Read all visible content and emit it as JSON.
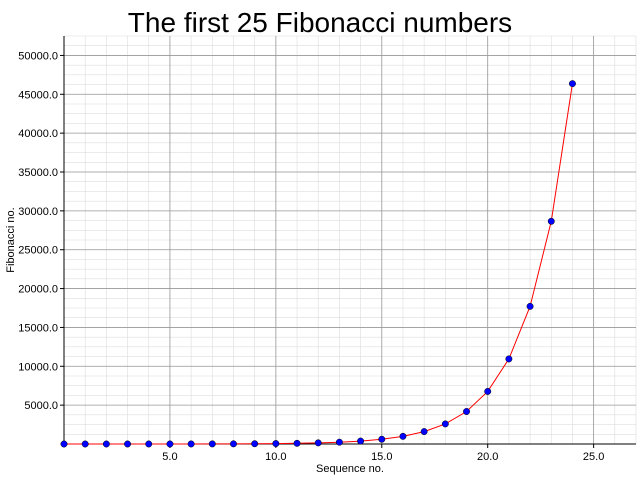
{
  "chart_data": {
    "type": "line",
    "title": "The first 25 Fibonacci numbers",
    "xlabel": "Sequence no.",
    "ylabel": "Fibonacci no.",
    "xlim": [
      0,
      27
    ],
    "ylim": [
      0,
      52500
    ],
    "x_ticks": [
      5,
      10,
      15,
      20,
      25
    ],
    "x_tick_labels": [
      "5.0",
      "10.0",
      "15.0",
      "20.0",
      "25.0"
    ],
    "y_ticks": [
      5000,
      10000,
      15000,
      20000,
      25000,
      30000,
      35000,
      40000,
      45000,
      50000
    ],
    "y_tick_labels": [
      "5000.0",
      "10000.0",
      "15000.0",
      "20000.0",
      "25000.0",
      "30000.0",
      "35000.0",
      "40000.0",
      "45000.0",
      "50000.0"
    ],
    "grid": true,
    "colors": {
      "line": "#ff0000",
      "marker": "#0000ff",
      "major_grid": "#999999",
      "minor_grid": "#dddddd"
    },
    "series": [
      {
        "x": [
          0,
          1,
          2,
          3,
          4,
          5,
          6,
          7,
          8,
          9,
          10,
          11,
          12,
          13,
          14,
          15,
          16,
          17,
          18,
          19,
          20,
          21,
          22,
          23,
          24
        ],
        "values": [
          0,
          1,
          1,
          2,
          3,
          5,
          8,
          13,
          21,
          34,
          55,
          89,
          144,
          233,
          377,
          610,
          987,
          1597,
          2584,
          4181,
          6765,
          10946,
          17711,
          28657,
          46368
        ]
      }
    ]
  }
}
